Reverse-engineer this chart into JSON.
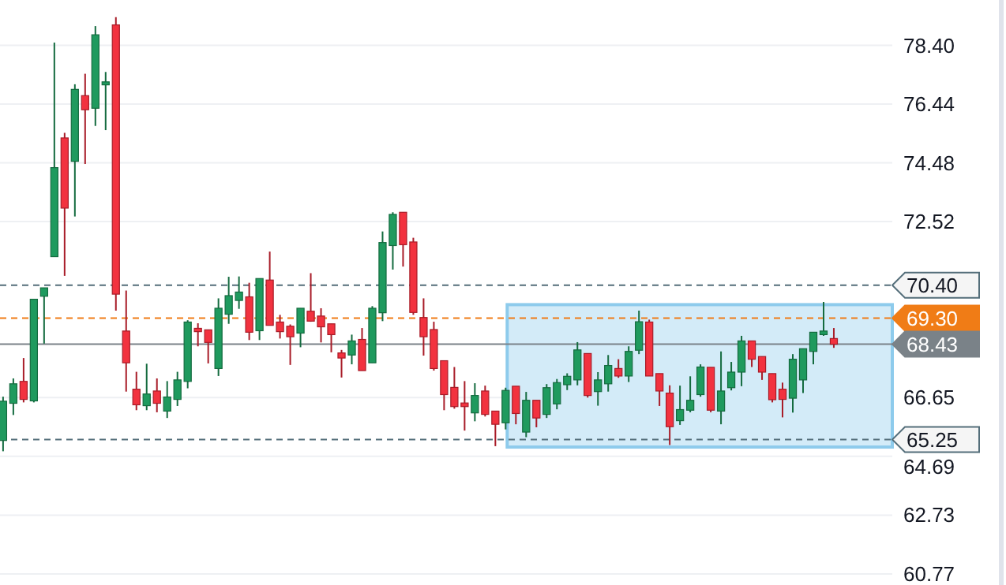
{
  "chart_data": {
    "type": "candlestick",
    "categories": [
      null,
      null,
      null,
      null,
      null,
      null,
      null,
      null,
      null,
      null,
      null,
      null,
      null,
      null,
      null,
      null,
      null,
      null,
      null,
      null,
      null,
      null,
      null,
      null,
      null,
      null,
      null,
      null,
      null,
      null,
      null,
      null,
      null,
      null,
      null,
      null,
      null,
      null,
      null,
      null,
      null,
      null,
      null,
      null,
      null,
      null,
      null,
      null,
      null,
      null,
      null,
      null,
      null,
      null,
      null,
      null,
      null,
      null,
      null,
      null,
      null,
      null,
      null,
      null,
      null,
      null,
      null,
      null,
      null,
      null,
      null,
      null,
      null,
      null,
      null,
      null,
      null,
      null,
      null,
      null,
      null,
      null
    ],
    "ohlc": [
      [
        65.22,
        66.68,
        64.86,
        66.53
      ],
      [
        66.46,
        67.29,
        66.07,
        67.11
      ],
      [
        67.19,
        67.97,
        66.49,
        66.59
      ],
      [
        66.54,
        69.93,
        66.49,
        69.93
      ],
      [
        70.03,
        70.31,
        68.45,
        70.31
      ],
      [
        71.35,
        78.49,
        71.35,
        74.32
      ],
      [
        75.31,
        75.48,
        70.71,
        72.97
      ],
      [
        74.53,
        77.1,
        72.69,
        76.93
      ],
      [
        76.72,
        77.45,
        74.44,
        76.25
      ],
      [
        76.3,
        79.04,
        75.71,
        78.75
      ],
      [
        77.08,
        77.51,
        75.57,
        77.18
      ],
      [
        79.08,
        79.34,
        69.55,
        70.1
      ],
      [
        68.87,
        70.22,
        66.85,
        67.81
      ],
      [
        66.93,
        67.51,
        66.23,
        66.41
      ],
      [
        66.38,
        67.78,
        66.23,
        66.77
      ],
      [
        66.87,
        67.29,
        66.16,
        66.46
      ],
      [
        66.2,
        67.2,
        65.97,
        66.67
      ],
      [
        66.59,
        67.51,
        66.37,
        67.24
      ],
      [
        67.19,
        69.23,
        66.96,
        69.17
      ],
      [
        68.96,
        69.13,
        68.36,
        68.85
      ],
      [
        68.91,
        68.91,
        67.79,
        68.49
      ],
      [
        67.62,
        69.96,
        67.37,
        69.63
      ],
      [
        69.43,
        70.68,
        69.11,
        70.05
      ],
      [
        69.89,
        70.69,
        69.61,
        70.17
      ],
      [
        70.01,
        70.48,
        68.57,
        68.83
      ],
      [
        68.88,
        70.62,
        68.57,
        70.62
      ],
      [
        70.57,
        71.52,
        69.06,
        69.06
      ],
      [
        69.17,
        69.41,
        68.62,
        68.85
      ],
      [
        69.03,
        69.09,
        67.74,
        68.68
      ],
      [
        68.8,
        69.63,
        68.33,
        69.63
      ],
      [
        69.53,
        70.8,
        69.18,
        69.2
      ],
      [
        69.37,
        69.63,
        68.49,
        69.01
      ],
      [
        69.11,
        69.11,
        68.16,
        68.75
      ],
      [
        68.14,
        68.24,
        67.32,
        67.97
      ],
      [
        68.07,
        68.75,
        67.76,
        68.54
      ],
      [
        68.59,
        68.97,
        67.55,
        67.55
      ],
      [
        67.81,
        69.7,
        67.81,
        69.63
      ],
      [
        69.48,
        72.19,
        69.2,
        71.82
      ],
      [
        71.72,
        72.83,
        70.92,
        72.76
      ],
      [
        72.83,
        72.83,
        71.02,
        71.75
      ],
      [
        71.84,
        71.98,
        69.41,
        69.49
      ],
      [
        69.32,
        69.96,
        68.05,
        68.68
      ],
      [
        68.92,
        69.18,
        67.55,
        67.62
      ],
      [
        67.88,
        67.88,
        66.23,
        66.75
      ],
      [
        66.99,
        67.67,
        66.28,
        66.35
      ],
      [
        66.47,
        67.2,
        65.55,
        66.35
      ],
      [
        66.14,
        67.13,
        65.86,
        66.72
      ],
      [
        66.87,
        67.05,
        66.02,
        66.09
      ],
      [
        66.2,
        66.2,
        65.03,
        65.76
      ],
      [
        65.81,
        66.98,
        65.59,
        66.89
      ],
      [
        67.03,
        67.03,
        65.76,
        66.12
      ],
      [
        65.5,
        66.84,
        65.33,
        66.56
      ],
      [
        66.56,
        66.56,
        65.66,
        65.97
      ],
      [
        66.09,
        67.1,
        65.97,
        66.98
      ],
      [
        66.44,
        67.27,
        66.26,
        67.15
      ],
      [
        67.08,
        67.46,
        66.9,
        67.36
      ],
      [
        67.24,
        68.5,
        67.06,
        68.24
      ],
      [
        68.12,
        68.12,
        66.65,
        66.72
      ],
      [
        66.85,
        67.5,
        66.38,
        67.24
      ],
      [
        67.11,
        68.07,
        66.85,
        67.72
      ],
      [
        67.62,
        67.93,
        67.31,
        67.37
      ],
      [
        67.37,
        68.36,
        67.17,
        68.19
      ],
      [
        68.23,
        69.55,
        68.1,
        69.18
      ],
      [
        69.17,
        69.25,
        67.37,
        67.37
      ],
      [
        67.45,
        67.45,
        66.37,
        66.87
      ],
      [
        66.8,
        67.06,
        65.07,
        65.68
      ],
      [
        65.88,
        67.05,
        65.74,
        66.25
      ],
      [
        66.23,
        67.36,
        66.16,
        66.56
      ],
      [
        66.75,
        67.76,
        66.68,
        67.67
      ],
      [
        67.66,
        67.66,
        66.16,
        66.23
      ],
      [
        66.2,
        68.19,
        65.76,
        66.87
      ],
      [
        66.98,
        67.84,
        66.89,
        67.5
      ],
      [
        67.5,
        68.71,
        67.03,
        68.54
      ],
      [
        68.54,
        68.54,
        67.67,
        67.93
      ],
      [
        68.02,
        68.02,
        67.24,
        67.5
      ],
      [
        67.45,
        67.45,
        66.49,
        66.58
      ],
      [
        66.93,
        67.15,
        65.99,
        66.59
      ],
      [
        66.63,
        68.1,
        66.15,
        67.93
      ],
      [
        67.24,
        68.28,
        66.8,
        68.28
      ],
      [
        68.19,
        68.83,
        67.76,
        68.83
      ],
      [
        68.75,
        69.84,
        68.71,
        68.87
      ],
      [
        68.62,
        68.97,
        68.31,
        68.43
      ]
    ],
    "ylim": [
      60.4,
      79.91
    ],
    "yticks": [
      {
        "value": 60.77,
        "label": "60.77"
      },
      {
        "value": 62.73,
        "label": "62.73"
      },
      {
        "value": 64.69,
        "label": "64.69"
      },
      {
        "value": 66.65,
        "label": "66.65"
      },
      {
        "value": 72.52,
        "label": "72.52"
      },
      {
        "value": 74.48,
        "label": "74.48"
      },
      {
        "value": 76.44,
        "label": "76.44"
      },
      {
        "value": 78.4,
        "label": "78.40"
      }
    ],
    "grid": "y",
    "tick_labels": "y",
    "ref_lines": [
      {
        "axis": "y",
        "value": 70.4,
        "label": "70.40",
        "color": "#546e7a",
        "line_style": "dashed"
      },
      {
        "axis": "y",
        "value": 69.3,
        "label": "69.30",
        "color": "#f07c16",
        "line_style": "dashed"
      },
      {
        "axis": "y",
        "value": 68.43,
        "label": "68.43",
        "color": "#7a8288",
        "line_style": "solid"
      },
      {
        "axis": "y",
        "value": 65.25,
        "label": "65.25",
        "color": "#546e7a",
        "line_style": "dashed"
      }
    ]
  }
}
